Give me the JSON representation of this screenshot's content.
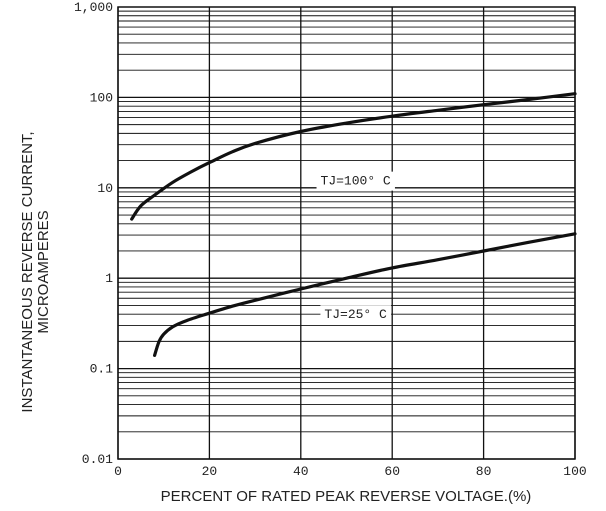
{
  "chart_data": {
    "type": "line",
    "xlabel": "PERCENT OF RATED PEAK REVERSE VOLTAGE.(%)",
    "ylabel_lines": [
      "INSTANTANEOUS REVERSE CURRENT,",
      "MICROAMPERES"
    ],
    "xlim": [
      0,
      100
    ],
    "ylim": [
      0.01,
      1000
    ],
    "y_scale": "log",
    "x_ticks": [
      {
        "value": 0,
        "label": "0"
      },
      {
        "value": 20,
        "label": "20"
      },
      {
        "value": 40,
        "label": "40"
      },
      {
        "value": 60,
        "label": "60"
      },
      {
        "value": 80,
        "label": "80"
      },
      {
        "value": 100,
        "label": "100"
      }
    ],
    "y_ticks": [
      {
        "value": 0.01,
        "label": "0.01"
      },
      {
        "value": 0.1,
        "label": "0.1"
      },
      {
        "value": 1,
        "label": "1"
      },
      {
        "value": 10,
        "label": "10"
      },
      {
        "value": 100,
        "label": "100"
      },
      {
        "value": 1000,
        "label": "1,000"
      }
    ],
    "grid": true,
    "legend": "none",
    "series": [
      {
        "name": "TJ=100° C",
        "label_at": {
          "x": 52,
          "y": 12
        },
        "x": [
          3,
          5,
          8,
          12,
          16,
          20,
          25,
          30,
          40,
          50,
          60,
          70,
          80,
          90,
          100
        ],
        "y": [
          4.5,
          6.3,
          8.3,
          11.5,
          15.0,
          19.0,
          25.0,
          31.0,
          42.0,
          52.0,
          62.0,
          72.0,
          83.0,
          95.0,
          110.0
        ]
      },
      {
        "name": "TJ=25° C",
        "label_at": {
          "x": 52,
          "y": 0.4
        },
        "x": [
          8,
          9,
          10,
          12,
          15,
          20,
          25,
          30,
          40,
          50,
          60,
          70,
          80,
          90,
          100
        ],
        "y": [
          0.14,
          0.2,
          0.24,
          0.29,
          0.34,
          0.41,
          0.49,
          0.57,
          0.76,
          1.0,
          1.3,
          1.6,
          2.0,
          2.5,
          3.1
        ]
      }
    ]
  }
}
